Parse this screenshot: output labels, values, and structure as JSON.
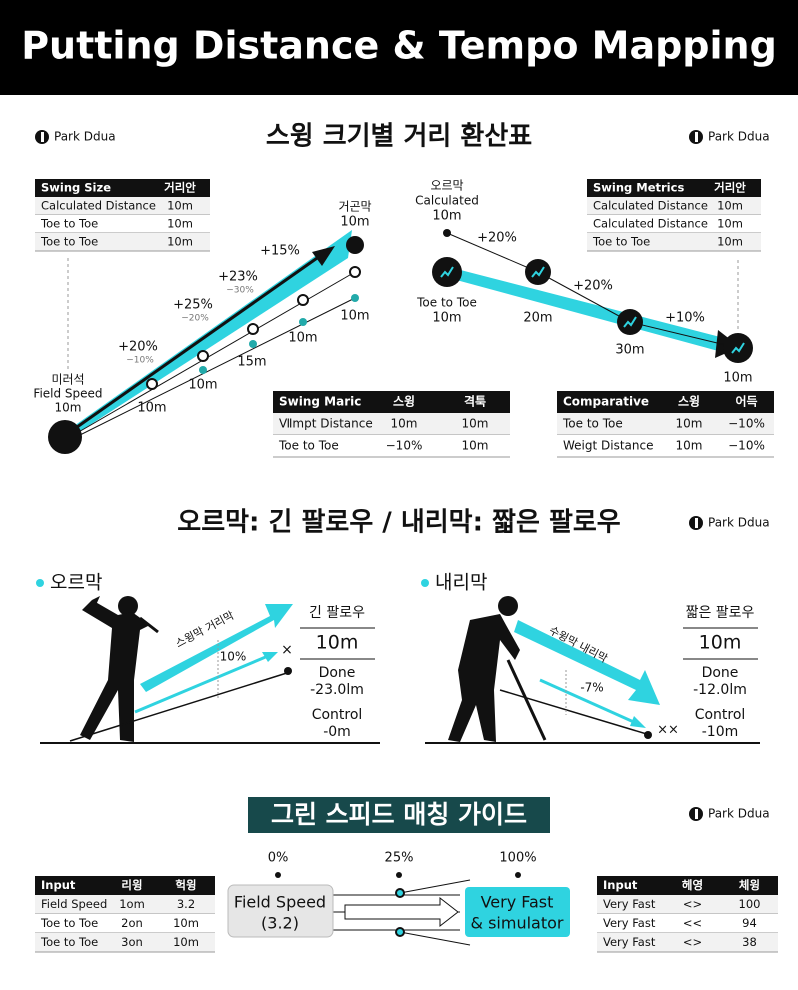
{
  "header": {
    "title": "Putting Distance & Tempo Mapping"
  },
  "brand": "Park Ddua",
  "section1": {
    "title": "스윙 크기별 거리 환산표",
    "left_table": {
      "header": [
        "Swing Size",
        "거리안"
      ],
      "rows": [
        [
          "Calculated Distance",
          "10m"
        ],
        [
          "Toe to Toe",
          "10m"
        ],
        [
          "Toe to Toe",
          "10m"
        ]
      ]
    },
    "left_diagram": {
      "start": [
        "미러석",
        "Field Speed",
        "10m"
      ],
      "end": [
        "거곤막",
        "10m"
      ],
      "steps": [
        [
          "+20%",
          "−10%"
        ],
        [
          "+25%",
          "−20%"
        ],
        [
          "+23%",
          "−30%"
        ],
        [
          "+15%"
        ]
      ],
      "distances": [
        "10m",
        "10m",
        "15m",
        "10m",
        "10m"
      ]
    },
    "left_bottom_table": {
      "header": [
        "Swing Maric",
        "스윙",
        "격툭"
      ],
      "rows": [
        [
          "Ⅶmpt Distance",
          "10m",
          "10m"
        ],
        [
          "Toe to Toe",
          "−10%",
          "10m"
        ]
      ]
    },
    "right_table": {
      "header": [
        "Swing Metrics",
        "거리안"
      ],
      "rows": [
        [
          "Calculated Distance",
          "10m"
        ],
        [
          "Calculated Distance",
          "10m"
        ],
        [
          "Toe to Toe",
          "10m"
        ]
      ]
    },
    "right_diagram": {
      "start": [
        "오르막",
        "Calculated",
        "10m"
      ],
      "step1": "+20%",
      "node1": [
        "Toe to Toe",
        "10m"
      ],
      "d2": "20m",
      "step2": "+20%",
      "d3": "30m",
      "step3": "+10%",
      "end": "10m"
    },
    "right_bottom_table": {
      "header": [
        "Comparative",
        "스윙",
        "어득"
      ],
      "rows": [
        [
          "Toe to Toe",
          "10m",
          "−10%"
        ],
        [
          "Weigt Distance",
          "10m",
          "−10%"
        ]
      ]
    }
  },
  "section2": {
    "title": "오르막: 긴 팔로우 / 내리막: 짧은 팔로우",
    "left": {
      "label": "오르막",
      "arrow_text": "스윙막 거리막",
      "angle": "10%",
      "mark": "×",
      "box": [
        "긴 팔로우",
        "10m",
        "Done",
        "-23.0lm",
        "Control",
        "-0m"
      ]
    },
    "right": {
      "label": "내리막",
      "arrow_text": "수윙막 내리막",
      "angle": "-7%",
      "mark": "××",
      "box": [
        "짧은 팔로우",
        "10m",
        "Done",
        "-12.0lm",
        "Control",
        "-10m"
      ]
    }
  },
  "section3": {
    "title": "그린 스피드 매칭 가이드",
    "left_table": {
      "header": [
        "Input",
        "리윙",
        "헉윙"
      ],
      "rows": [
        [
          "Field Speed",
          "1om",
          "3.2"
        ],
        [
          "Toe to Toe",
          "2on",
          "10m"
        ],
        [
          "Toe to Toe",
          "3on",
          "10m"
        ]
      ]
    },
    "scale": [
      "0%",
      "25%",
      "100%"
    ],
    "input_box": [
      "Field Speed",
      "(3.2)"
    ],
    "output_box": [
      "Very Fast",
      "& simulator"
    ],
    "right_table": {
      "header": [
        "Input",
        "헤영",
        "체윙"
      ],
      "rows": [
        [
          "Very Fast",
          "<>",
          "100"
        ],
        [
          "Very Fast",
          "<<",
          "94"
        ],
        [
          "Very Fast",
          "<>",
          "38"
        ]
      ]
    }
  }
}
